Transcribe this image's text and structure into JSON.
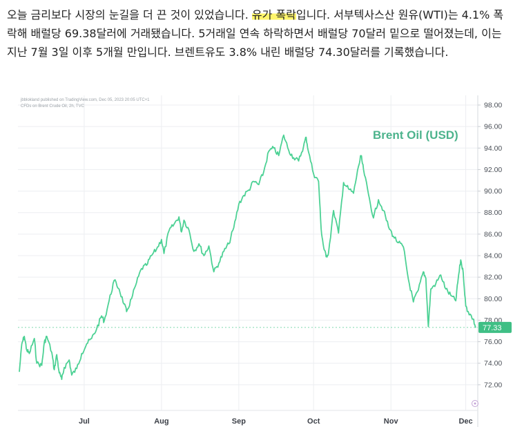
{
  "article": {
    "text_before_highlight": "오늘 금리보다 시장의 눈길을 더 끈 것이 있었습니다. ",
    "highlight": "유가 폭락",
    "text_after_highlight": "입니다. 서부텍사스산 원유(WTI)는 4.1% 폭락해 배럴당 69.38달러에 거래됐습니다. 5거래일 연속 하락하면서 배럴당 70달러 밑으로 떨어졌는데, 이는 지난 7월 3일 이후 5개월 만입니다. 브렌트유도 3.8% 내린 배럴당 74.30달러를 기록했습니다."
  },
  "chart_meta": {
    "publisher_line": "jbblokland published on TradingView.com, Dec 05, 2023 20:05 UTC+1",
    "symbol_line": "CFDs on Brent Crude Oil, 2h, TVC"
  },
  "chart_data": {
    "type": "line",
    "title": "Brent Oil (USD)",
    "xlabel": "",
    "ylabel": "",
    "ylim": [
      70,
      98
    ],
    "y_ticks": [
      "98.00",
      "96.00",
      "94.00",
      "92.00",
      "90.00",
      "88.00",
      "86.00",
      "84.00",
      "82.00",
      "80.00",
      "78.00",
      "76.00",
      "74.00",
      "72.00"
    ],
    "x_ticks": [
      {
        "label": "Jul",
        "date": "2023-07-01"
      },
      {
        "label": "Aug",
        "date": "2023-08-01"
      },
      {
        "label": "Sep",
        "date": "2023-09-01"
      },
      {
        "label": "Oct",
        "date": "2023-10-01"
      },
      {
        "label": "Nov",
        "date": "2023-11-01"
      },
      {
        "label": "Dec",
        "date": "2023-12-01"
      }
    ],
    "x_range": [
      "2023-06-05",
      "2023-12-05"
    ],
    "grid": true,
    "last_price": "77.33",
    "series": [
      {
        "color": "#4cd194",
        "points": [
          [
            "2023-06-05",
            73.2
          ],
          [
            "2023-06-06",
            75.8
          ],
          [
            "2023-06-07",
            76.5
          ],
          [
            "2023-06-08",
            75.2
          ],
          [
            "2023-06-09",
            74.9
          ],
          [
            "2023-06-11",
            76.3
          ],
          [
            "2023-06-12",
            74.0
          ],
          [
            "2023-06-14",
            73.8
          ],
          [
            "2023-06-15",
            75.9
          ],
          [
            "2023-06-16",
            76.5
          ],
          [
            "2023-06-18",
            75.0
          ],
          [
            "2023-06-19",
            73.4
          ],
          [
            "2023-06-20",
            74.8
          ],
          [
            "2023-06-21",
            73.1
          ],
          [
            "2023-06-22",
            72.5
          ],
          [
            "2023-06-23",
            73.6
          ],
          [
            "2023-06-25",
            74.3
          ],
          [
            "2023-06-26",
            72.9
          ],
          [
            "2023-06-28",
            73.5
          ],
          [
            "2023-06-30",
            74.9
          ],
          [
            "2023-07-02",
            75.8
          ],
          [
            "2023-07-04",
            76.3
          ],
          [
            "2023-07-06",
            77.2
          ],
          [
            "2023-07-08",
            78.4
          ],
          [
            "2023-07-09",
            77.9
          ],
          [
            "2023-07-11",
            79.8
          ],
          [
            "2023-07-13",
            81.7
          ],
          [
            "2023-07-15",
            80.9
          ],
          [
            "2023-07-17",
            79.5
          ],
          [
            "2023-07-18",
            78.8
          ],
          [
            "2023-07-20",
            80.0
          ],
          [
            "2023-07-22",
            81.5
          ],
          [
            "2023-07-24",
            82.8
          ],
          [
            "2023-07-26",
            83.1
          ],
          [
            "2023-07-28",
            84.0
          ],
          [
            "2023-07-30",
            84.6
          ],
          [
            "2023-08-01",
            85.5
          ],
          [
            "2023-08-02",
            84.2
          ],
          [
            "2023-08-04",
            86.3
          ],
          [
            "2023-08-06",
            86.9
          ],
          [
            "2023-08-08",
            87.6
          ],
          [
            "2023-08-09",
            86.2
          ],
          [
            "2023-08-10",
            87.3
          ],
          [
            "2023-08-12",
            86.4
          ],
          [
            "2023-08-14",
            84.4
          ],
          [
            "2023-08-16",
            85.1
          ],
          [
            "2023-08-18",
            84.0
          ],
          [
            "2023-08-20",
            84.9
          ],
          [
            "2023-08-22",
            82.5
          ],
          [
            "2023-08-24",
            83.3
          ],
          [
            "2023-08-26",
            84.4
          ],
          [
            "2023-08-28",
            85.1
          ],
          [
            "2023-08-30",
            86.6
          ],
          [
            "2023-09-01",
            88.8
          ],
          [
            "2023-09-03",
            89.6
          ],
          [
            "2023-09-05",
            90.1
          ],
          [
            "2023-09-07",
            90.9
          ],
          [
            "2023-09-09",
            90.6
          ],
          [
            "2023-09-11",
            91.8
          ],
          [
            "2023-09-13",
            93.7
          ],
          [
            "2023-09-15",
            94.0
          ],
          [
            "2023-09-17",
            93.3
          ],
          [
            "2023-09-19",
            95.2
          ],
          [
            "2023-09-21",
            93.8
          ],
          [
            "2023-09-23",
            93.1
          ],
          [
            "2023-09-25",
            92.8
          ],
          [
            "2023-09-27",
            94.2
          ],
          [
            "2023-09-28",
            95.0
          ],
          [
            "2023-09-29",
            93.6
          ],
          [
            "2023-10-01",
            91.6
          ],
          [
            "2023-10-03",
            90.9
          ],
          [
            "2023-10-04",
            86.5
          ],
          [
            "2023-10-05",
            84.8
          ],
          [
            "2023-10-06",
            83.9
          ],
          [
            "2023-10-07",
            84.3
          ],
          [
            "2023-10-09",
            88.2
          ],
          [
            "2023-10-11",
            86.1
          ],
          [
            "2023-10-13",
            90.8
          ],
          [
            "2023-10-15",
            90.2
          ],
          [
            "2023-10-17",
            89.8
          ],
          [
            "2023-10-19",
            92.3
          ],
          [
            "2023-10-20",
            93.3
          ],
          [
            "2023-10-21",
            92.0
          ],
          [
            "2023-10-23",
            89.7
          ],
          [
            "2023-10-25",
            87.5
          ],
          [
            "2023-10-27",
            89.2
          ],
          [
            "2023-10-29",
            88.2
          ],
          [
            "2023-10-31",
            86.7
          ],
          [
            "2023-11-02",
            85.8
          ],
          [
            "2023-11-04",
            85.2
          ],
          [
            "2023-11-06",
            84.8
          ],
          [
            "2023-11-08",
            81.8
          ],
          [
            "2023-11-10",
            79.7
          ],
          [
            "2023-11-12",
            80.8
          ],
          [
            "2023-11-14",
            82.5
          ],
          [
            "2023-11-15",
            81.9
          ],
          [
            "2023-11-16",
            77.4
          ],
          [
            "2023-11-17",
            80.9
          ],
          [
            "2023-11-19",
            81.4
          ],
          [
            "2023-11-21",
            82.2
          ],
          [
            "2023-11-23",
            80.9
          ],
          [
            "2023-11-25",
            80.3
          ],
          [
            "2023-11-27",
            79.8
          ],
          [
            "2023-11-28",
            81.9
          ],
          [
            "2023-11-29",
            83.6
          ],
          [
            "2023-11-30",
            82.4
          ],
          [
            "2023-12-01",
            79.3
          ],
          [
            "2023-12-02",
            78.8
          ],
          [
            "2023-12-04",
            78.1
          ],
          [
            "2023-12-05",
            77.3
          ]
        ]
      }
    ]
  }
}
